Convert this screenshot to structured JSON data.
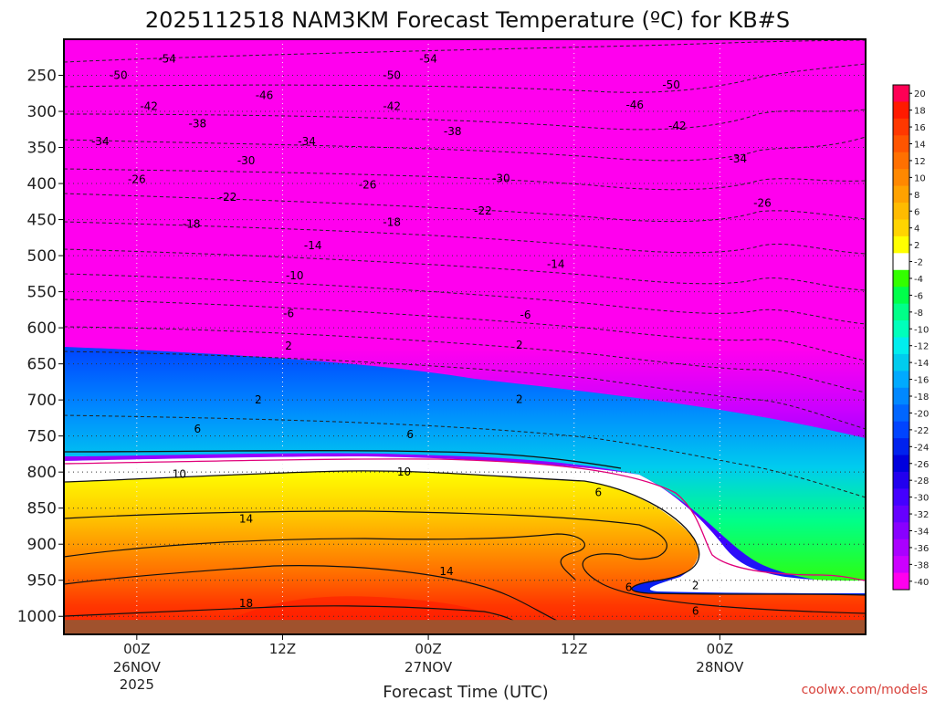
{
  "chart_data": {
    "type": "heatmap",
    "title": "2025112518 NAM3KM Forecast Temperature (ºC) for KB#S",
    "xlabel": "Forecast Time (UTC)",
    "ylabel": "",
    "credit": "coolwx.com/models",
    "x_range_hours": [
      -6,
      60
    ],
    "x_ticks": [
      {
        "hour": 0,
        "label": "00Z",
        "date": "26NOV",
        "year": "2025"
      },
      {
        "hour": 12,
        "label": "12Z",
        "date": "",
        "year": ""
      },
      {
        "hour": 24,
        "label": "00Z",
        "date": "27NOV",
        "year": ""
      },
      {
        "hour": 36,
        "label": "12Z",
        "date": "",
        "year": ""
      },
      {
        "hour": 48,
        "label": "00Z",
        "date": "28NOV",
        "year": ""
      }
    ],
    "y_axis": "pressure (hPa)",
    "y_range": [
      1025,
      200
    ],
    "y_ticks": [
      250,
      300,
      350,
      400,
      450,
      500,
      550,
      600,
      650,
      700,
      750,
      800,
      850,
      900,
      950,
      1000
    ],
    "surface_pressure": 1005,
    "colorbar": {
      "levels": [
        20,
        18,
        16,
        14,
        12,
        10,
        8,
        6,
        4,
        2,
        -2,
        -4,
        -6,
        -8,
        -10,
        -12,
        -14,
        -16,
        -18,
        -20,
        -22,
        -24,
        -26,
        -28,
        -30,
        -32,
        -34,
        -36,
        -38,
        -40
      ],
      "colors": [
        "#ff0055",
        "#ff1a00",
        "#ff3800",
        "#ff5500",
        "#ff7000",
        "#ff8800",
        "#ffa200",
        "#ffbb00",
        "#ffd400",
        "#ffff00",
        "#ffffff",
        "#33ff00",
        "#00ff4a",
        "#00ff88",
        "#00ffbb",
        "#00eeee",
        "#00ccee",
        "#00aaff",
        "#0088ff",
        "#0066ff",
        "#0044ff",
        "#0022ee",
        "#0000dd",
        "#2200ee",
        "#4400ff",
        "#6600ff",
        "#8800ff",
        "#aa00ff",
        "#cc00ff",
        "#ff00ee"
      ]
    },
    "temperature_profile": {
      "description_levels_hPa": [
        200,
        250,
        300,
        350,
        400,
        450,
        500,
        550,
        600,
        650,
        700,
        750,
        800,
        850,
        900,
        950,
        1000
      ],
      "hours": [
        -6,
        12,
        24,
        36,
        48,
        60
      ],
      "values_C": [
        [
          -56,
          -50,
          -42,
          -35,
          -28,
          -20,
          -13,
          -8,
          -4,
          1,
          3,
          6,
          9,
          12,
          15,
          17,
          19
        ],
        [
          -56,
          -50,
          -44,
          -37,
          -30,
          -22,
          -15,
          -10,
          -5,
          1,
          3,
          6,
          10,
          13,
          16,
          18,
          20
        ],
        [
          -56,
          -50,
          -44,
          -38,
          -30,
          -22,
          -16,
          -10,
          -6,
          0,
          3,
          5,
          9,
          12,
          15,
          17,
          19
        ],
        [
          -57,
          -52,
          -46,
          -40,
          -32,
          -25,
          -18,
          -12,
          -7,
          -2,
          1,
          4,
          7,
          10,
          12,
          14,
          15
        ],
        [
          -58,
          -54,
          -48,
          -42,
          -36,
          -30,
          -24,
          -18,
          -12,
          -8,
          -6,
          -6,
          -5,
          -4,
          -1,
          3,
          5
        ],
        [
          -58,
          -55,
          -49,
          -43,
          -37,
          -31,
          -25,
          -19,
          -13,
          -9,
          -7,
          -6,
          -5,
          -3,
          0,
          3,
          5
        ]
      ]
    },
    "contour_labels": [
      {
        "value": "-54",
        "hour": 2.5,
        "p": 227
      },
      {
        "value": "-54",
        "hour": 24,
        "p": 227
      },
      {
        "value": "-50",
        "hour": -1.5,
        "p": 250
      },
      {
        "value": "-50",
        "hour": 21,
        "p": 250
      },
      {
        "value": "-50",
        "hour": 44,
        "p": 263
      },
      {
        "value": "-46",
        "hour": 10.5,
        "p": 278
      },
      {
        "value": "-46",
        "hour": 41,
        "p": 291
      },
      {
        "value": "-42",
        "hour": 1,
        "p": 293
      },
      {
        "value": "-42",
        "hour": 21,
        "p": 293
      },
      {
        "value": "-42",
        "hour": 44.5,
        "p": 320
      },
      {
        "value": "-38",
        "hour": 5,
        "p": 317
      },
      {
        "value": "-38",
        "hour": 26,
        "p": 328
      },
      {
        "value": "-34",
        "hour": -3,
        "p": 342
      },
      {
        "value": "-34",
        "hour": 14,
        "p": 342
      },
      {
        "value": "-34",
        "hour": 49.5,
        "p": 366
      },
      {
        "value": "-30",
        "hour": 9,
        "p": 368
      },
      {
        "value": "-30",
        "hour": 30,
        "p": 393
      },
      {
        "value": "-26",
        "hour": 0,
        "p": 394
      },
      {
        "value": "-26",
        "hour": 19,
        "p": 402
      },
      {
        "value": "-26",
        "hour": 51.5,
        "p": 427
      },
      {
        "value": "-22",
        "hour": 7.5,
        "p": 419
      },
      {
        "value": "-22",
        "hour": 28.5,
        "p": 438
      },
      {
        "value": "-18",
        "hour": 4.5,
        "p": 456
      },
      {
        "value": "-18",
        "hour": 21,
        "p": 454
      },
      {
        "value": "-14",
        "hour": 14.5,
        "p": 486
      },
      {
        "value": "-14",
        "hour": 34.5,
        "p": 512
      },
      {
        "value": "-10",
        "hour": 13,
        "p": 528
      },
      {
        "value": "-6",
        "hour": 12.5,
        "p": 580
      },
      {
        "value": "-6",
        "hour": 32,
        "p": 582
      },
      {
        "value": "2",
        "hour": 12.5,
        "p": 625
      },
      {
        "value": "2",
        "hour": 31.5,
        "p": 624
      },
      {
        "value": "2",
        "hour": 10,
        "p": 700
      },
      {
        "value": "2",
        "hour": 31.5,
        "p": 699
      },
      {
        "value": "6",
        "hour": 5,
        "p": 740
      },
      {
        "value": "6",
        "hour": 22.5,
        "p": 748
      },
      {
        "value": "6",
        "hour": 40.5,
        "p": 960
      },
      {
        "value": "6",
        "hour": 46,
        "p": 993
      },
      {
        "value": "2",
        "hour": 46,
        "p": 957
      },
      {
        "value": "6",
        "hour": 38,
        "p": 828
      },
      {
        "value": "10",
        "hour": 3.5,
        "p": 803
      },
      {
        "value": "10",
        "hour": 22,
        "p": 800
      },
      {
        "value": "14",
        "hour": 9,
        "p": 865
      },
      {
        "value": "14",
        "hour": 25.5,
        "p": 938
      },
      {
        "value": "18",
        "hour": 9,
        "p": 982
      }
    ]
  }
}
